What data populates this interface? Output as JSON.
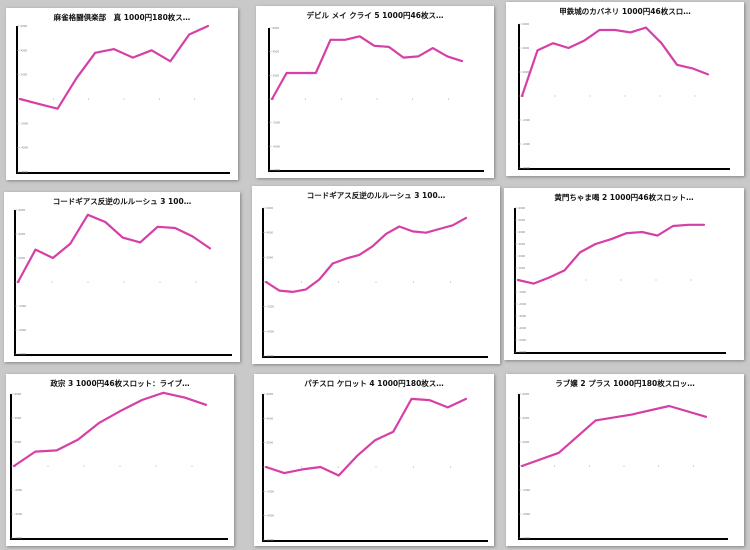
{
  "chart_data": [
    {
      "type": "line",
      "title": "麻雀格闘倶楽部　真 1000円180枚ス…",
      "series": [
        {
          "color": "#d63fa6",
          "y": [
            0,
            -400,
            -800,
            1700,
            3800,
            4100,
            3400,
            4000,
            3100,
            5300,
            6000
          ]
        }
      ],
      "yticks": [
        -6000,
        -4000,
        -2000,
        0,
        2000,
        4000,
        6000
      ],
      "ytick_labels": [
        "-6000",
        "-4000",
        "-2000",
        "0",
        "2000",
        "4000",
        "6000"
      ],
      "ylim": [
        -6000,
        6000
      ],
      "xtick_count": 5
    },
    {
      "type": "line",
      "title": "デビル メイ クライ 5 1000円46枚ス…",
      "series": [
        {
          "color": "#d63fa6",
          "y": [
            0,
            2200,
            2200,
            2200,
            5000,
            5000,
            5300,
            4500,
            4400,
            3500,
            3600,
            4300,
            3600,
            3200
          ]
        }
      ],
      "yticks": [
        -6000,
        -4000,
        -2000,
        0,
        2000,
        4000,
        6000
      ],
      "ytick_labels": [
        "-6000",
        "-4000",
        "-2000",
        "0",
        "2000",
        "4000",
        "6000"
      ],
      "ylim": [
        -6000,
        6000
      ],
      "xtick_count": 5
    },
    {
      "type": "line",
      "title": "甲鉄城のカバネリ 1000円46枚スロ…",
      "series": [
        {
          "color": "#d63fa6",
          "y": [
            0,
            3800,
            4400,
            4000,
            4600,
            5500,
            5500,
            5300,
            5700,
            4400,
            2600,
            2300,
            1800
          ]
        }
      ],
      "yticks": [
        -6000,
        -4000,
        -2000,
        0,
        2000,
        4000,
        6000
      ],
      "ytick_labels": [
        "-6000",
        "-4000",
        "-2000",
        "0",
        "2000",
        "4000",
        "6000"
      ],
      "ylim": [
        -6000,
        6000
      ],
      "xtick_count": 5
    },
    {
      "type": "line",
      "title": "コードギアス反逆のルルーシュ 3 100…",
      "series": [
        {
          "color": "#d63fa6",
          "y": [
            0,
            2700,
            2000,
            3200,
            5600,
            5000,
            3700,
            3300,
            4600,
            4500,
            3800,
            2800
          ]
        }
      ],
      "yticks": [
        -6000,
        -4000,
        -2000,
        0,
        2000,
        4000,
        6000
      ],
      "ytick_labels": [
        "-6000",
        "-4000",
        "-2000",
        "0",
        "2000",
        "4000",
        "6000"
      ],
      "ylim": [
        -6000,
        6000
      ],
      "xtick_count": 5
    },
    {
      "type": "line",
      "title": "コードギアス反逆のルルーシュ 3 100…",
      "series": [
        {
          "color": "#d63fa6",
          "y": [
            0,
            -700,
            -800,
            -600,
            200,
            1500,
            1900,
            2200,
            2900,
            3900,
            4500,
            4100,
            4000,
            4300,
            4600,
            5200
          ]
        }
      ],
      "yticks": [
        -6000,
        -4000,
        -2000,
        0,
        2000,
        4000,
        6000
      ],
      "ytick_labels": [
        "-6000",
        "-4000",
        "-2000",
        "0",
        "2000",
        "4000",
        "6000"
      ],
      "ylim": [
        -6000,
        6000
      ],
      "xtick_count": 5
    },
    {
      "type": "line",
      "title": "黄門ちゃま喝 2 1000円46枚スロット…",
      "series": [
        {
          "color": "#d63fa6",
          "y": [
            0,
            -300,
            200,
            800,
            2300,
            3000,
            3400,
            3900,
            4000,
            3700,
            4500,
            4600,
            4600
          ]
        }
      ],
      "yticks": [
        -6000,
        -5000,
        -4000,
        -3000,
        -2000,
        -1000,
        0,
        1000,
        2000,
        3000,
        4000,
        5000,
        6000
      ],
      "ytick_labels": [
        "-6000",
        "-5000",
        "-4000",
        "-3000",
        "-2000",
        "-1000",
        "0",
        "1000",
        "2000",
        "3000",
        "4000",
        "5000",
        "6000"
      ],
      "ylim": [
        -6000,
        6000
      ],
      "xtick_count": 5
    },
    {
      "type": "line",
      "title": "政宗 3 1000円46枚スロット：ライブ…",
      "series": [
        {
          "color": "#d63fa6",
          "y": [
            0,
            1200,
            1300,
            2200,
            3600,
            4600,
            5500,
            6100,
            5700,
            5100
          ]
        }
      ],
      "yticks": [
        -6000,
        -4000,
        -2000,
        0,
        2000,
        4000,
        6000
      ],
      "ytick_labels": [
        "-6000",
        "-4000",
        "-2000",
        "0",
        "2000",
        "4000",
        "6000"
      ],
      "ylim": [
        -6000,
        6000
      ],
      "xtick_count": 5
    },
    {
      "type": "line",
      "title": "パチスロ ケロット 4 1000円180枚ス…",
      "series": [
        {
          "color": "#d63fa6",
          "y": [
            0,
            -500,
            -200,
            0,
            -700,
            900,
            2200,
            2900,
            5600,
            5500,
            4900,
            5600
          ]
        }
      ],
      "yticks": [
        -6000,
        -4000,
        -2000,
        0,
        2000,
        4000,
        6000
      ],
      "ytick_labels": [
        "-6000",
        "-4000",
        "-2000",
        "0",
        "2000",
        "4000",
        "6000"
      ],
      "ylim": [
        -6000,
        6000
      ],
      "xtick_count": 5
    },
    {
      "type": "line",
      "title": "ラブ嬢 2 プラス 1000円180枚スロッ…",
      "series": [
        {
          "color": "#d63fa6",
          "y": [
            0,
            1100,
            3800,
            4300,
            5000,
            4100
          ]
        }
      ],
      "yticks": [
        -6000,
        -4000,
        -2000,
        0,
        2000,
        4000,
        6000
      ],
      "ytick_labels": [
        "-6000",
        "-4000",
        "-2000",
        "0",
        "2000",
        "4000",
        "6000"
      ],
      "ylim": [
        -6000,
        6000
      ],
      "xtick_count": 5
    }
  ]
}
